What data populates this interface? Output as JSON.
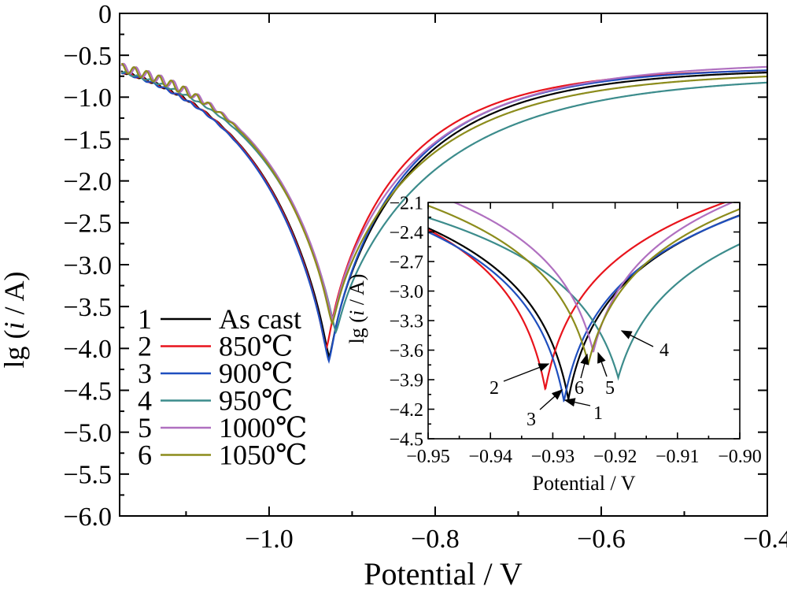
{
  "chart_data": [
    {
      "type": "line",
      "panel": "main",
      "xlabel": "Potential / V",
      "ylabel_parts": [
        "lg (",
        "i",
        " / A)"
      ],
      "xlim": [
        -1.18,
        -0.4
      ],
      "ylim": [
        -6.0,
        0
      ],
      "xticks": [
        -1.0,
        -0.8,
        -0.6,
        -0.4
      ],
      "xtick_labels": [
        "−1.0",
        "−0.8",
        "−0.6",
        "−0.4"
      ],
      "yticks": [
        0,
        -0.5,
        -1.0,
        -1.5,
        -2.0,
        -2.5,
        -3.0,
        -3.5,
        -4.0,
        -4.5,
        -5.0,
        -5.5,
        -6.0
      ],
      "ytick_labels": [
        "0",
        "−0.5",
        "−1.0",
        "−1.5",
        "−2.0",
        "−2.5",
        "−3.0",
        "−3.5",
        "−4.0",
        "−4.5",
        "−5.0",
        "−5.5",
        "−6.0"
      ],
      "legend_placement": "lower-left",
      "grid": false,
      "series": [
        {
          "number": "1",
          "name": "As cast",
          "color": "#000000",
          "ecorr": -0.9275,
          "min": -4.1
        },
        {
          "number": "2",
          "name": "850℃",
          "color": "#e8141c",
          "ecorr": -0.931,
          "min": -4.0
        },
        {
          "number": "3",
          "name": "900℃",
          "color": "#1f4fbf",
          "ecorr": -0.928,
          "min": -4.15
        },
        {
          "number": "4",
          "name": "950℃",
          "color": "#3c8c8c",
          "ecorr": -0.9195,
          "min": -3.8
        },
        {
          "number": "5",
          "name": "1000℃",
          "color": "#b070c0",
          "ecorr": -0.9235,
          "min": -3.65
        },
        {
          "number": "6",
          "name": "1050℃",
          "color": "#8c8c1c",
          "ecorr": -0.924,
          "min": -3.7
        }
      ]
    },
    {
      "type": "line",
      "panel": "inset",
      "xlabel": "Potential / V",
      "ylabel_parts": [
        "lg (",
        "i",
        " / A)"
      ],
      "xlim": [
        -0.95,
        -0.9
      ],
      "ylim": [
        -4.5,
        -2.1
      ],
      "xticks": [
        -0.95,
        -0.94,
        -0.93,
        -0.92,
        -0.91,
        -0.9
      ],
      "xtick_labels": [
        "−0.95",
        "−0.94",
        "−0.93",
        "−0.92",
        "−0.91",
        "−0.90"
      ],
      "yticks": [
        -2.1,
        -2.4,
        -2.7,
        -3.0,
        -3.3,
        -3.6,
        -3.9,
        -4.2,
        -4.5
      ],
      "ytick_labels": [
        "−2.1",
        "−2.4",
        "−2.7",
        "−3.0",
        "−3.3",
        "−3.6",
        "−3.9",
        "−4.2",
        "−4.5"
      ],
      "annotations": [
        "1",
        "2",
        "3",
        "4",
        "5",
        "6"
      ]
    }
  ]
}
